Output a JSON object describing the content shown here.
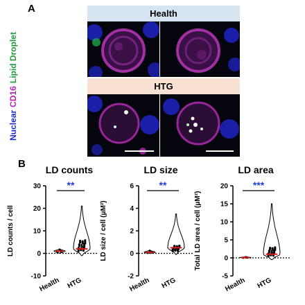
{
  "panel_a": {
    "letter": "A",
    "row_labels": [
      "Health",
      "HTG"
    ],
    "side_label": [
      {
        "text": "Nuclear",
        "color": "#1b2ad6"
      },
      {
        "text": "CD16",
        "color": "#b51fb5"
      },
      {
        "text": "Lipid Droplet",
        "color": "#1f9c3a"
      }
    ],
    "band_colors": {
      "health": "#d6e4f2",
      "htg": "#f8e1d2"
    }
  },
  "panel_b": {
    "letter": "B",
    "significance_color": "#1f3fd6",
    "group_labels": [
      "Health",
      "HTG"
    ]
  },
  "chart_data": [
    {
      "type": "violin",
      "title": "LD counts",
      "ylabel": "LD counts / cell",
      "ylim": [
        -10,
        30
      ],
      "yticks": [
        "30",
        "20",
        "10",
        "0",
        "-10"
      ],
      "yvals": [
        30,
        20,
        10,
        0,
        -10
      ],
      "categories": [
        "Health",
        "HTG"
      ],
      "significance": "**",
      "series": [
        {
          "median": 1,
          "min": 0,
          "max": 2,
          "q1": 0.5,
          "q3": 1.5
        },
        {
          "median": 2,
          "min": -1,
          "max": 21,
          "q1": 1,
          "q3": 6
        }
      ]
    },
    {
      "type": "violin",
      "title": "LD size",
      "ylabel": "LD size / cell (μM²)",
      "ylim": [
        -2,
        6
      ],
      "yticks": [
        "6",
        "4",
        "2",
        "0",
        "-2"
      ],
      "yvals": [
        6,
        4,
        2,
        0,
        -2
      ],
      "categories": [
        "Health",
        "HTG"
      ],
      "significance": "**",
      "series": [
        {
          "median": 0.1,
          "min": 0,
          "max": 0.3,
          "q1": 0.05,
          "q3": 0.2
        },
        {
          "median": 0.5,
          "min": -0.1,
          "max": 3.5,
          "q1": 0.2,
          "q3": 0.7
        }
      ]
    },
    {
      "type": "violin",
      "title": "LD area",
      "ylabel": "Total LD area / cell (μM²)",
      "ylim": [
        -5,
        20
      ],
      "yticks": [
        "20",
        "15",
        "10",
        "5",
        "0",
        "-5"
      ],
      "yvals": [
        20,
        15,
        10,
        5,
        0,
        -5
      ],
      "categories": [
        "Health",
        "HTG"
      ],
      "significance": "***",
      "series": [
        {
          "median": 0.1,
          "min": 0,
          "max": 0.3,
          "q1": 0.05,
          "q3": 0.2
        },
        {
          "median": 1,
          "min": -0.5,
          "max": 15,
          "q1": 0.5,
          "q3": 3
        }
      ]
    }
  ]
}
